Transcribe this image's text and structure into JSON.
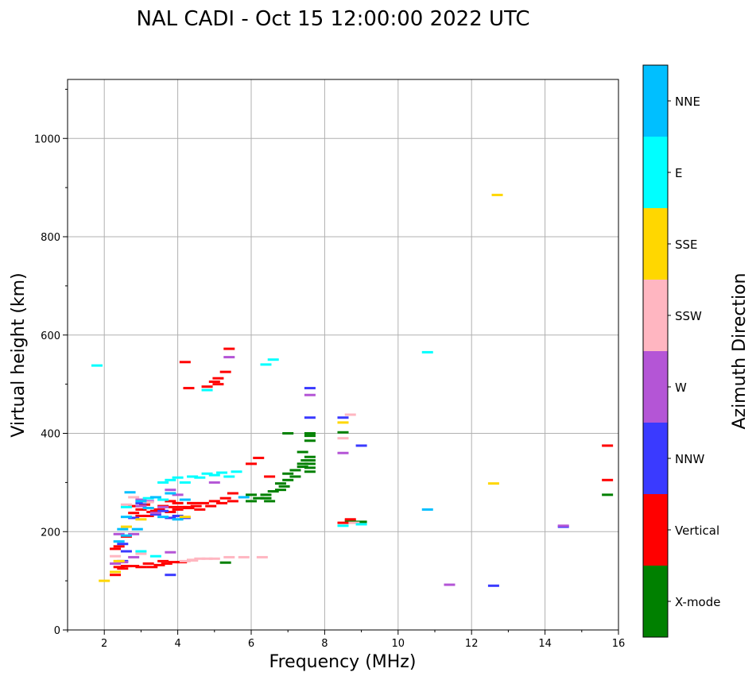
{
  "chart_data": {
    "type": "scatter",
    "title": "NAL CADI - Oct 15 12:00:00 2022 UTC",
    "xlabel": "Frequency (MHz)",
    "ylabel": "Virtual height (km)",
    "xlim": [
      1,
      16
    ],
    "ylim": [
      0,
      1120
    ],
    "xticks": [
      2,
      4,
      6,
      8,
      10,
      12,
      14,
      16
    ],
    "yticks": [
      0,
      200,
      400,
      600,
      800,
      1000
    ],
    "grid": true,
    "colorbar": {
      "title": "Azimuth Direction",
      "categories": [
        "X-mode",
        "Vertical",
        "NNW",
        "W",
        "SSW",
        "SSE",
        "E",
        "NNE"
      ],
      "colors": [
        "#008000",
        "#ff0000",
        "#3a3aff",
        "#b455d6",
        "#ffb6c1",
        "#ffd700",
        "#00ffff",
        "#00bfff"
      ]
    },
    "series": [
      {
        "name": "X-mode",
        "points": [
          [
            5.3,
            137
          ],
          [
            6.0,
            262
          ],
          [
            6.0,
            275
          ],
          [
            6.2,
            268
          ],
          [
            6.4,
            268
          ],
          [
            6.4,
            275
          ],
          [
            6.5,
            262
          ],
          [
            6.6,
            282
          ],
          [
            6.8,
            285
          ],
          [
            6.8,
            298
          ],
          [
            6.9,
            292
          ],
          [
            7.0,
            305
          ],
          [
            7.0,
            318
          ],
          [
            7.0,
            400
          ],
          [
            7.2,
            312
          ],
          [
            7.2,
            325
          ],
          [
            7.4,
            332
          ],
          [
            7.4,
            338
          ],
          [
            7.4,
            362
          ],
          [
            7.5,
            345
          ],
          [
            7.6,
            322
          ],
          [
            7.6,
            330
          ],
          [
            7.6,
            338
          ],
          [
            7.6,
            345
          ],
          [
            7.6,
            352
          ],
          [
            7.6,
            385
          ],
          [
            7.6,
            395
          ],
          [
            7.6,
            400
          ],
          [
            8.5,
            402
          ],
          [
            8.7,
            222
          ],
          [
            9.0,
            220
          ],
          [
            15.7,
            275
          ]
        ]
      },
      {
        "name": "Vertical",
        "points": [
          [
            2.3,
            112
          ],
          [
            2.3,
            165
          ],
          [
            2.4,
            128
          ],
          [
            2.4,
            170
          ],
          [
            2.5,
            125
          ],
          [
            2.6,
            130
          ],
          [
            2.6,
            190
          ],
          [
            2.8,
            130
          ],
          [
            2.8,
            238
          ],
          [
            2.8,
            252
          ],
          [
            3.0,
            128
          ],
          [
            3.0,
            232
          ],
          [
            3.0,
            245
          ],
          [
            3.1,
            255
          ],
          [
            3.2,
            135
          ],
          [
            3.2,
            232
          ],
          [
            3.2,
            248
          ],
          [
            3.3,
            128
          ],
          [
            3.3,
            240
          ],
          [
            3.4,
            242
          ],
          [
            3.5,
            132
          ],
          [
            3.5,
            245
          ],
          [
            3.6,
            140
          ],
          [
            3.6,
            252
          ],
          [
            3.7,
            135
          ],
          [
            3.8,
            240
          ],
          [
            3.8,
            262
          ],
          [
            3.9,
            138
          ],
          [
            3.9,
            250
          ],
          [
            4.0,
            245
          ],
          [
            4.0,
            258
          ],
          [
            4.1,
            138
          ],
          [
            4.2,
            250
          ],
          [
            4.2,
            545
          ],
          [
            4.3,
            248
          ],
          [
            4.3,
            492
          ],
          [
            4.4,
            142
          ],
          [
            4.4,
            258
          ],
          [
            4.5,
            252
          ],
          [
            4.6,
            245
          ],
          [
            4.7,
            258
          ],
          [
            4.8,
            495
          ],
          [
            4.9,
            252
          ],
          [
            5.0,
            262
          ],
          [
            5.0,
            505
          ],
          [
            5.1,
            500
          ],
          [
            5.1,
            512
          ],
          [
            5.2,
            258
          ],
          [
            5.3,
            268
          ],
          [
            5.3,
            525
          ],
          [
            5.4,
            572
          ],
          [
            5.5,
            262
          ],
          [
            5.5,
            278
          ],
          [
            6.0,
            338
          ],
          [
            6.2,
            350
          ],
          [
            6.5,
            312
          ],
          [
            8.5,
            218
          ],
          [
            8.7,
            225
          ],
          [
            15.7,
            305
          ],
          [
            15.7,
            375
          ]
        ]
      },
      {
        "name": "NNW",
        "points": [
          [
            2.5,
            140
          ],
          [
            2.5,
            175
          ],
          [
            2.6,
            160
          ],
          [
            2.8,
            228
          ],
          [
            3.0,
            258
          ],
          [
            3.2,
            262
          ],
          [
            3.4,
            235
          ],
          [
            3.6,
            242
          ],
          [
            3.8,
            228
          ],
          [
            3.8,
            112
          ],
          [
            4.0,
            232
          ],
          [
            4.2,
            228
          ],
          [
            7.6,
            432
          ],
          [
            7.6,
            492
          ],
          [
            8.5,
            432
          ],
          [
            9.0,
            375
          ],
          [
            12.6,
            90
          ],
          [
            14.5,
            210
          ]
        ]
      },
      {
        "name": "W",
        "points": [
          [
            2.3,
            135
          ],
          [
            2.4,
            195
          ],
          [
            2.5,
            138
          ],
          [
            2.8,
            148
          ],
          [
            2.8,
            195
          ],
          [
            3.0,
            252
          ],
          [
            3.0,
            265
          ],
          [
            3.2,
            262
          ],
          [
            3.4,
            238
          ],
          [
            3.6,
            250
          ],
          [
            3.8,
            158
          ],
          [
            3.8,
            285
          ],
          [
            4.0,
            275
          ],
          [
            5.0,
            300
          ],
          [
            5.4,
            555
          ],
          [
            7.6,
            478
          ],
          [
            8.5,
            360
          ],
          [
            11.4,
            92
          ],
          [
            14.5,
            212
          ]
        ]
      },
      {
        "name": "SSW",
        "points": [
          [
            2.3,
            150
          ],
          [
            2.4,
            140
          ],
          [
            2.6,
            255
          ],
          [
            2.8,
            270
          ],
          [
            3.0,
            155
          ],
          [
            3.2,
            260
          ],
          [
            4.2,
            140
          ],
          [
            4.4,
            142
          ],
          [
            4.6,
            145
          ],
          [
            4.8,
            145
          ],
          [
            5.0,
            145
          ],
          [
            5.4,
            148
          ],
          [
            5.8,
            148
          ],
          [
            6.3,
            148
          ],
          [
            8.5,
            390
          ],
          [
            8.7,
            438
          ],
          [
            8.8,
            218
          ]
        ]
      },
      {
        "name": "SSE",
        "points": [
          [
            2.0,
            100
          ],
          [
            2.3,
            118
          ],
          [
            2.4,
            140
          ],
          [
            2.6,
            210
          ],
          [
            3.0,
            225
          ],
          [
            4.2,
            230
          ],
          [
            8.5,
            422
          ],
          [
            12.6,
            298
          ],
          [
            12.7,
            885
          ]
        ]
      },
      {
        "name": "E",
        "points": [
          [
            1.8,
            538
          ],
          [
            2.6,
            250
          ],
          [
            3.0,
            160
          ],
          [
            3.2,
            268
          ],
          [
            3.4,
            150
          ],
          [
            3.6,
            265
          ],
          [
            3.6,
            300
          ],
          [
            3.8,
            305
          ],
          [
            4.0,
            310
          ],
          [
            4.2,
            300
          ],
          [
            4.4,
            312
          ],
          [
            4.6,
            310
          ],
          [
            4.8,
            318
          ],
          [
            5.0,
            315
          ],
          [
            5.2,
            320
          ],
          [
            5.4,
            312
          ],
          [
            5.6,
            322
          ],
          [
            6.4,
            540
          ],
          [
            6.6,
            550
          ],
          [
            8.5,
            212
          ],
          [
            9.0,
            215
          ],
          [
            10.8,
            565
          ],
          [
            4.8,
            488
          ]
        ]
      },
      {
        "name": "NNE",
        "points": [
          [
            2.4,
            180
          ],
          [
            2.5,
            205
          ],
          [
            2.6,
            192
          ],
          [
            2.6,
            230
          ],
          [
            2.7,
            280
          ],
          [
            2.9,
            205
          ],
          [
            3.0,
            262
          ],
          [
            3.2,
            248
          ],
          [
            3.4,
            270
          ],
          [
            3.6,
            230
          ],
          [
            3.8,
            278
          ],
          [
            4.0,
            225
          ],
          [
            4.2,
            265
          ],
          [
            5.8,
            270
          ],
          [
            10.8,
            245
          ]
        ]
      }
    ]
  }
}
